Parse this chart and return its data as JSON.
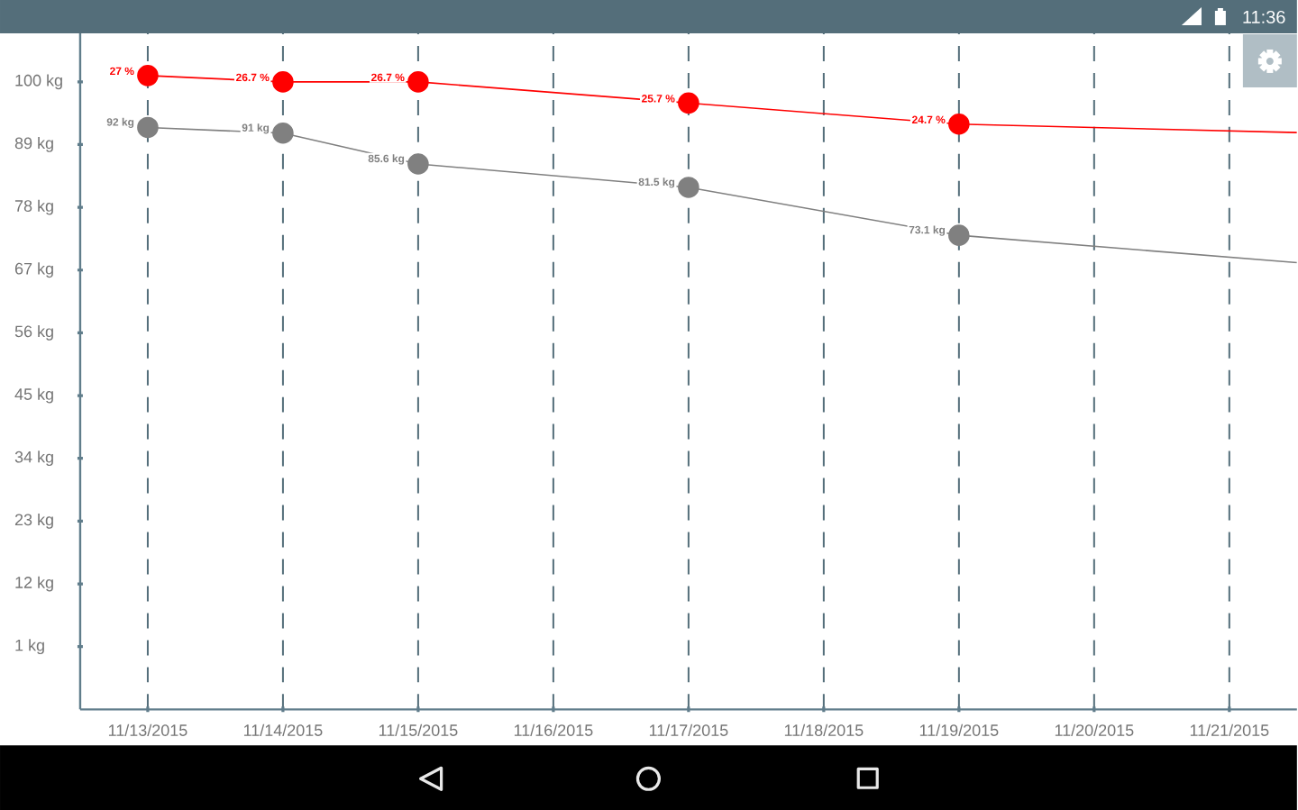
{
  "chart_data": {
    "type": "line",
    "x": [
      "2015-11-13",
      "2015-11-14",
      "2015-11-15",
      "2015-11-17",
      "2015-11-19",
      "2015-11-21T12:00"
    ],
    "series": [
      {
        "color": "#808080",
        "values": [
          92,
          91,
          85.6,
          81.5,
          73.1,
          68.3
        ],
        "value_labels": [
          "92 kg",
          "91 kg",
          "85.6 kg",
          "81.5 kg",
          "73.1 kg",
          null
        ]
      },
      {
        "color": "#ff0000",
        "axis": "y2",
        "values": [
          27,
          26.7,
          26.7,
          25.7,
          24.7,
          24.3
        ],
        "value_labels": [
          "27 %",
          "26.7 %",
          "26.7 %",
          "25.7 %",
          "24.7 %",
          null
        ]
      }
    ],
    "xlim": [
      "2015-11-12T12:00",
      "2015-11-21T12:00"
    ],
    "xticks": [
      {
        "value": "2015-11-13",
        "label": "11/13/2015"
      },
      {
        "value": "2015-11-14",
        "label": "11/14/2015"
      },
      {
        "value": "2015-11-15",
        "label": "11/15/2015"
      },
      {
        "value": "2015-11-16",
        "label": "11/16/2015"
      },
      {
        "value": "2015-11-17",
        "label": "11/17/2015"
      },
      {
        "value": "2015-11-18",
        "label": "11/18/2015"
      },
      {
        "value": "2015-11-19",
        "label": "11/19/2015"
      },
      {
        "value": "2015-11-20",
        "label": "11/20/2015"
      },
      {
        "value": "2015-11-21",
        "label": "11/21/2015"
      }
    ],
    "ylim": [
      -10,
      108.5
    ],
    "yticks": [
      {
        "value": 1,
        "label": "1 kg"
      },
      {
        "value": 12,
        "label": "12 kg"
      },
      {
        "value": 23,
        "label": "23 kg"
      },
      {
        "value": 34,
        "label": "34 kg"
      },
      {
        "value": 45,
        "label": "45 kg"
      },
      {
        "value": 56,
        "label": "56 kg"
      },
      {
        "value": 67,
        "label": "67 kg"
      },
      {
        "value": 78,
        "label": "78 kg"
      },
      {
        "value": 89,
        "label": "89 kg"
      },
      {
        "value": 100,
        "label": "100 kg"
      }
    ],
    "y2lim": [
      -3,
      29
    ],
    "grid": "x",
    "marker": "circle",
    "line_style": "solid",
    "annotations": [
      "11:36"
    ]
  }
}
